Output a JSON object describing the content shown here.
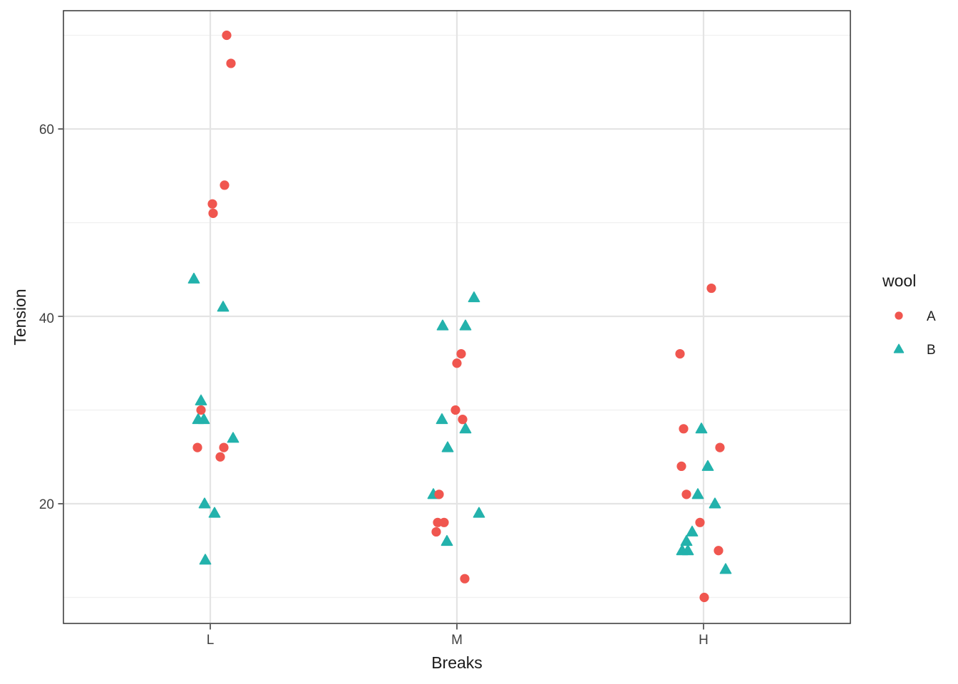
{
  "chart_data": {
    "type": "scatter",
    "title": "",
    "xlabel": "Breaks",
    "ylabel": "Tension",
    "categories": [
      "L",
      "M",
      "H"
    ],
    "y_major_ticks": [
      20,
      40,
      60
    ],
    "y_minor_gridlines": [
      10,
      30,
      50,
      70
    ],
    "ylim": [
      7.2,
      72.6
    ],
    "grid": "on",
    "legend": {
      "title": "wool",
      "position": "right",
      "entries": [
        {
          "label": "A",
          "shape": "circle",
          "color": "#F0564F"
        },
        {
          "label": "B",
          "shape": "triangle",
          "color": "#23B2AC"
        }
      ]
    },
    "style": {
      "panel_background": "#FFFFFF",
      "panel_border": "#333333",
      "grid_major": "#E4E4E4",
      "grid_minor": "#F0F0F0",
      "tick_mark": "#333333",
      "tick_label_color": "#404040",
      "title_color": "#1A1A1A"
    },
    "series": [
      {
        "name": "A",
        "shape": "circle",
        "color": "#F0564F",
        "points": [
          {
            "category": "L",
            "value": 70,
            "jitter": 23
          },
          {
            "category": "L",
            "value": 67,
            "jitter": 29
          },
          {
            "category": "L",
            "value": 54,
            "jitter": 20
          },
          {
            "category": "L",
            "value": 52,
            "jitter": 3
          },
          {
            "category": "L",
            "value": 51,
            "jitter": 4
          },
          {
            "category": "L",
            "value": 30,
            "jitter": -13
          },
          {
            "category": "L",
            "value": 26,
            "jitter": -18
          },
          {
            "category": "L",
            "value": 26,
            "jitter": 19
          },
          {
            "category": "L",
            "value": 25,
            "jitter": 14
          },
          {
            "category": "M",
            "value": 36,
            "jitter": 6
          },
          {
            "category": "M",
            "value": 35,
            "jitter": 0
          },
          {
            "category": "M",
            "value": 30,
            "jitter": -2
          },
          {
            "category": "M",
            "value": 29,
            "jitter": 8
          },
          {
            "category": "M",
            "value": 21,
            "jitter": -25
          },
          {
            "category": "M",
            "value": 18,
            "jitter": -27
          },
          {
            "category": "M",
            "value": 18,
            "jitter": -18
          },
          {
            "category": "M",
            "value": 17,
            "jitter": -29
          },
          {
            "category": "M",
            "value": 12,
            "jitter": 11
          },
          {
            "category": "H",
            "value": 43,
            "jitter": 11
          },
          {
            "category": "H",
            "value": 36,
            "jitter": -33
          },
          {
            "category": "H",
            "value": 28,
            "jitter": -28
          },
          {
            "category": "H",
            "value": 26,
            "jitter": 23
          },
          {
            "category": "H",
            "value": 24,
            "jitter": -31
          },
          {
            "category": "H",
            "value": 21,
            "jitter": -24
          },
          {
            "category": "H",
            "value": 18,
            "jitter": -5
          },
          {
            "category": "H",
            "value": 15,
            "jitter": 21
          },
          {
            "category": "H",
            "value": 10,
            "jitter": 1
          }
        ]
      },
      {
        "name": "B",
        "shape": "triangle",
        "color": "#23B2AC",
        "points": [
          {
            "category": "L",
            "value": 44,
            "jitter": -23
          },
          {
            "category": "L",
            "value": 41,
            "jitter": 18
          },
          {
            "category": "L",
            "value": 31,
            "jitter": -13
          },
          {
            "category": "L",
            "value": 29,
            "jitter": -17
          },
          {
            "category": "L",
            "value": 29,
            "jitter": -9
          },
          {
            "category": "L",
            "value": 27,
            "jitter": 32
          },
          {
            "category": "L",
            "value": 20,
            "jitter": -8
          },
          {
            "category": "L",
            "value": 19,
            "jitter": 6
          },
          {
            "category": "L",
            "value": 14,
            "jitter": -7
          },
          {
            "category": "M",
            "value": 42,
            "jitter": 24
          },
          {
            "category": "M",
            "value": 39,
            "jitter": -20
          },
          {
            "category": "M",
            "value": 39,
            "jitter": 12
          },
          {
            "category": "M",
            "value": 29,
            "jitter": -21
          },
          {
            "category": "M",
            "value": 28,
            "jitter": 12
          },
          {
            "category": "M",
            "value": 26,
            "jitter": -13
          },
          {
            "category": "M",
            "value": 21,
            "jitter": -33
          },
          {
            "category": "M",
            "value": 19,
            "jitter": 31
          },
          {
            "category": "M",
            "value": 16,
            "jitter": -14
          },
          {
            "category": "H",
            "value": 28,
            "jitter": -3
          },
          {
            "category": "H",
            "value": 24,
            "jitter": 6
          },
          {
            "category": "H",
            "value": 21,
            "jitter": -8
          },
          {
            "category": "H",
            "value": 20,
            "jitter": 16
          },
          {
            "category": "H",
            "value": 17,
            "jitter": -16
          },
          {
            "category": "H",
            "value": 16,
            "jitter": -24
          },
          {
            "category": "H",
            "value": 15,
            "jitter": -30
          },
          {
            "category": "H",
            "value": 15,
            "jitter": -22
          },
          {
            "category": "H",
            "value": 13,
            "jitter": 31
          }
        ]
      }
    ]
  }
}
